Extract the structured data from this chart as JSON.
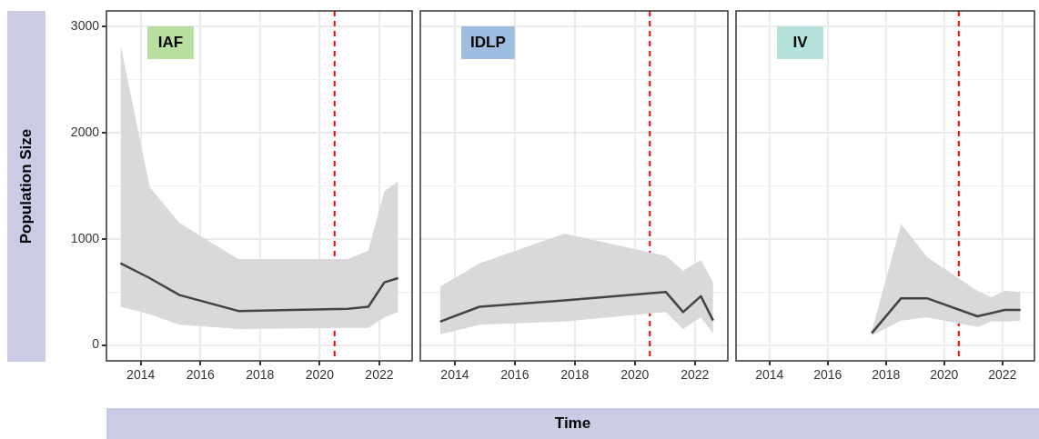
{
  "chart_data": [
    {
      "type": "line",
      "title": "IAF",
      "ylabel": "Population Size",
      "xlim": [
        2012.85,
        2023.1
      ],
      "xticks": [
        2014,
        2016,
        2018,
        2020,
        2022
      ],
      "ylim": [
        -150,
        3150
      ],
      "yticks": [
        0,
        {
          "value": 500,
          "label": null
        },
        1000,
        {
          "value": 1500,
          "label": null
        },
        2000,
        {
          "value": 2500,
          "label": null
        },
        3000
      ],
      "grid": true,
      "legend": false,
      "line_style": "solid",
      "marker": "none",
      "series": [
        {
          "color": "#444444",
          "x": [
            2013.32,
            2014.3,
            2015.3,
            2017.27,
            2020.95,
            2021.63,
            2022.17,
            2022.63
          ],
          "values": [
            770,
            630,
            470,
            320,
            340,
            360,
            590,
            630
          ],
          "lower": [
            360,
            290,
            190,
            150,
            160,
            160,
            260,
            310
          ],
          "upper": [
            2830,
            1490,
            1150,
            810,
            810,
            890,
            1450,
            1540
          ]
        }
      ],
      "ref_lines": [
        {
          "axis": "x",
          "value": 2020.5,
          "color": "#ff0000",
          "line_style": "dashed"
        }
      ]
    },
    {
      "type": "line",
      "title": "IDLP",
      "xlabel": "Time",
      "xlim": [
        2012.85,
        2023.1
      ],
      "xticks": [
        2014,
        2016,
        2018,
        2020,
        2022
      ],
      "ylim": [
        -150,
        3150
      ],
      "yticks": [
        0,
        {
          "value": 500,
          "label": null
        },
        1000,
        {
          "value": 1500,
          "label": null
        },
        2000,
        {
          "value": 2500,
          "label": null
        },
        3000
      ],
      "tick_labels": "x",
      "grid": true,
      "legend": false,
      "line_style": "solid",
      "marker": "none",
      "series": [
        {
          "color": "#444444",
          "x": [
            2013.51,
            2014.82,
            2017.65,
            2021.03,
            2021.61,
            2022.2,
            2022.61
          ],
          "values": [
            220,
            360,
            420,
            500,
            310,
            460,
            230
          ],
          "lower": [
            100,
            190,
            220,
            310,
            150,
            260,
            110
          ],
          "upper": [
            550,
            770,
            1050,
            840,
            700,
            800,
            590
          ]
        }
      ],
      "ref_lines": [
        {
          "axis": "x",
          "value": 2020.5,
          "color": "#ff0000",
          "line_style": "dashed"
        }
      ]
    },
    {
      "type": "line",
      "title": "IV",
      "xlim": [
        2012.85,
        2023.1
      ],
      "xticks": [
        2014,
        2016,
        2018,
        2020,
        2022
      ],
      "ylim": [
        -150,
        3150
      ],
      "yticks": [
        0,
        {
          "value": 500,
          "label": null
        },
        1000,
        {
          "value": 1500,
          "label": null
        },
        2000,
        {
          "value": 2500,
          "label": null
        },
        3000
      ],
      "tick_labels": "x",
      "grid": true,
      "legend": false,
      "line_style": "solid",
      "marker": "none",
      "series": [
        {
          "color": "#444444",
          "x": [
            2017.51,
            2018.52,
            2019.41,
            2021.14,
            2021.62,
            2022.08,
            2022.62
          ],
          "values": [
            110,
            440,
            440,
            270,
            300,
            330,
            330
          ],
          "lower": [
            90,
            230,
            260,
            170,
            220,
            220,
            230
          ],
          "upper": [
            130,
            1140,
            830,
            510,
            450,
            510,
            500
          ]
        }
      ],
      "ref_lines": [
        {
          "axis": "x",
          "value": 2020.5,
          "color": "#ff0000",
          "line_style": "dashed"
        }
      ]
    }
  ]
}
